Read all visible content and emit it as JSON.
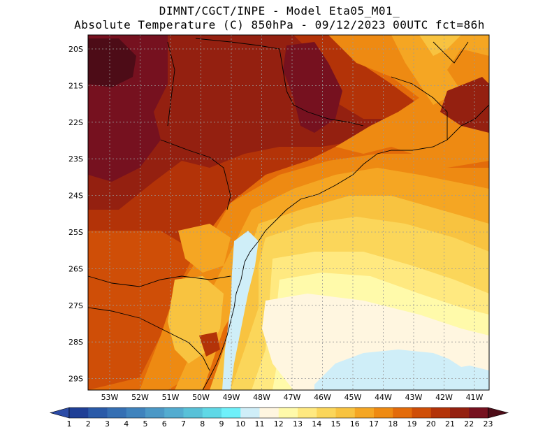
{
  "header": {
    "line1": "DIMNT/CGCT/INPE -  Model Eta05_M01_",
    "line2": "Absolute Temperature (C) 850hPa -  09/12/2023 00UTC fct=86h"
  },
  "axes": {
    "lat_labels": [
      "20S",
      "21S",
      "22S",
      "23S",
      "24S",
      "25S",
      "26S",
      "27S",
      "28S",
      "29S"
    ],
    "lon_labels": [
      "53W",
      "52W",
      "51W",
      "50W",
      "49W",
      "48W",
      "47W",
      "46W",
      "45W",
      "44W",
      "43W",
      "42W",
      "41W"
    ]
  },
  "colorbar": {
    "labels": [
      "1",
      "2",
      "3",
      "4",
      "5",
      "6",
      "7",
      "8",
      "9",
      "10",
      "11",
      "12",
      "13",
      "14",
      "15",
      "16",
      "17",
      "18",
      "19",
      "20",
      "21",
      "22",
      "23"
    ],
    "colors": [
      "#1f3f96",
      "#2a5aa8",
      "#356fb3",
      "#3f83bd",
      "#4b98c6",
      "#53acd0",
      "#58c1d8",
      "#5fd8e6",
      "#6ff0fa",
      "#cfeef8",
      "#fff6e0",
      "#fffaaa",
      "#ffe980",
      "#fbd65a",
      "#f8c340",
      "#f5a623",
      "#ee8a12",
      "#e36b0a",
      "#cf4e07",
      "#b33308",
      "#942010",
      "#76111f",
      "#5c0a1d"
    ],
    "tri_low_color": "#2b4ba6",
    "tri_high_color": "#4d0c17"
  },
  "map_colors": {
    "bg": "#e36b0a",
    "deep_red": "#76111f",
    "dark_red": "#942010",
    "red_brown": "#b33308",
    "rust": "#cf4e07",
    "orange": "#ee8a12",
    "amber": "#f5a623",
    "gold": "#f8c340",
    "yellow": "#fbd65a",
    "light_yellow": "#ffe980",
    "pale_yellow": "#fffaaa",
    "cream": "#fff6e0",
    "light_cyan": "#cfeef8",
    "darkest": "#4d0c17"
  }
}
